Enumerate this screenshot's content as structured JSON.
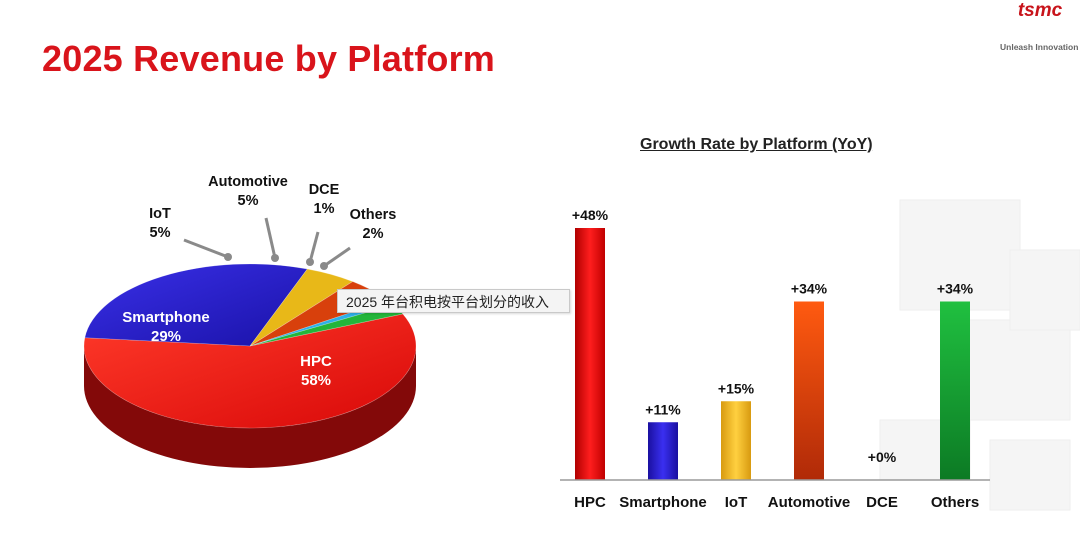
{
  "title": "2025 Revenue by Platform",
  "logo": {
    "text": "tsmc",
    "tagline": "Unleash Innovation"
  },
  "tooltip": "2025 年台积电按平台划分的收入",
  "colors": {
    "title": "#d9141b",
    "HPC": "#ee1111",
    "Smartphone": "#2a1fcf",
    "IoT": "#e8b818",
    "Automotive": "#d8400c",
    "DCE": "#2fb0e8",
    "Others": "#23b53a"
  },
  "chart_data": [
    {
      "type": "pie",
      "title": "",
      "slices": [
        {
          "label": "HPC",
          "value": 58,
          "value_label": "58%"
        },
        {
          "label": "Smartphone",
          "value": 29,
          "value_label": "29%"
        },
        {
          "label": "IoT",
          "value": 5,
          "value_label": "5%"
        },
        {
          "label": "Automotive",
          "value": 5,
          "value_label": "5%"
        },
        {
          "label": "DCE",
          "value": 1,
          "value_label": "1%"
        },
        {
          "label": "Others",
          "value": 2,
          "value_label": "2%"
        }
      ]
    },
    {
      "type": "bar",
      "title": "Growth Rate by Platform (YoY)",
      "categories": [
        "HPC",
        "Smartphone",
        "IoT",
        "Automotive",
        "DCE",
        "Others"
      ],
      "values": [
        48,
        11,
        15,
        34,
        0,
        34
      ],
      "value_labels": [
        "+48%",
        "+11%",
        "+15%",
        "+34%",
        "+0%",
        "+34%"
      ],
      "xlabel": "",
      "ylabel": "",
      "ylim": [
        0,
        50
      ],
      "grid": false
    }
  ]
}
